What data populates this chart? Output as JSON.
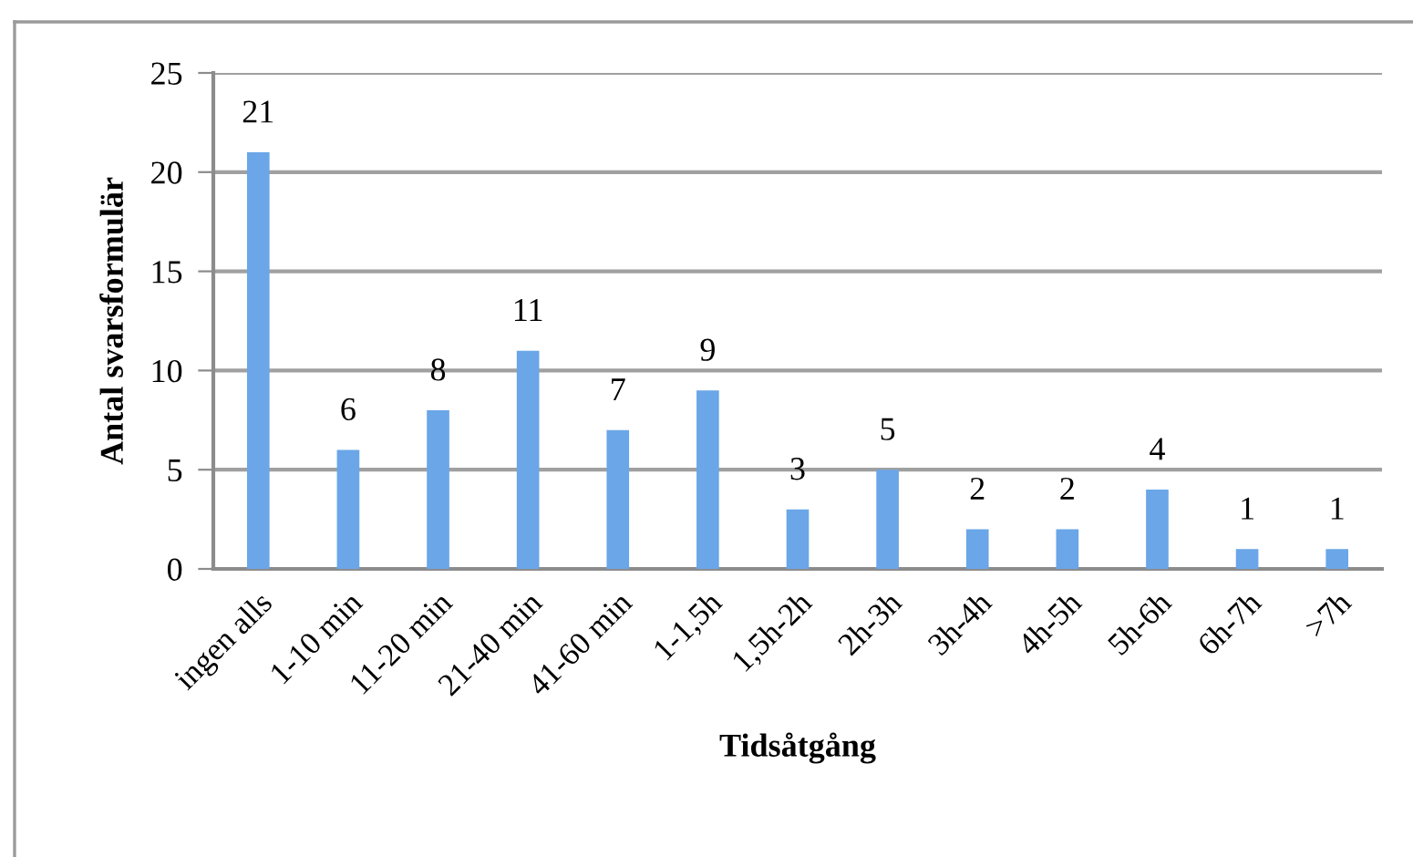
{
  "chart_data": {
    "type": "bar",
    "xlabel": "Tidsåtgång",
    "ylabel": "Antal svarsformulär",
    "categories": [
      "ingen alls",
      "1-10 min",
      "11-20 min",
      "21-40 min",
      "41-60 min",
      "1-1,5h",
      "1,5h-2h",
      "2h-3h",
      "3h-4h",
      "4h-5h",
      "5h-6h",
      "6h-7h",
      ">7h"
    ],
    "values": [
      21,
      6,
      8,
      11,
      7,
      9,
      3,
      5,
      2,
      2,
      4,
      1,
      1
    ],
    "color": "#6aa6e8",
    "ylim": [
      0,
      25
    ],
    "yticks": [
      0,
      5,
      10,
      15,
      20,
      25
    ],
    "grid": "y",
    "data_labels": true,
    "legend": false
  }
}
